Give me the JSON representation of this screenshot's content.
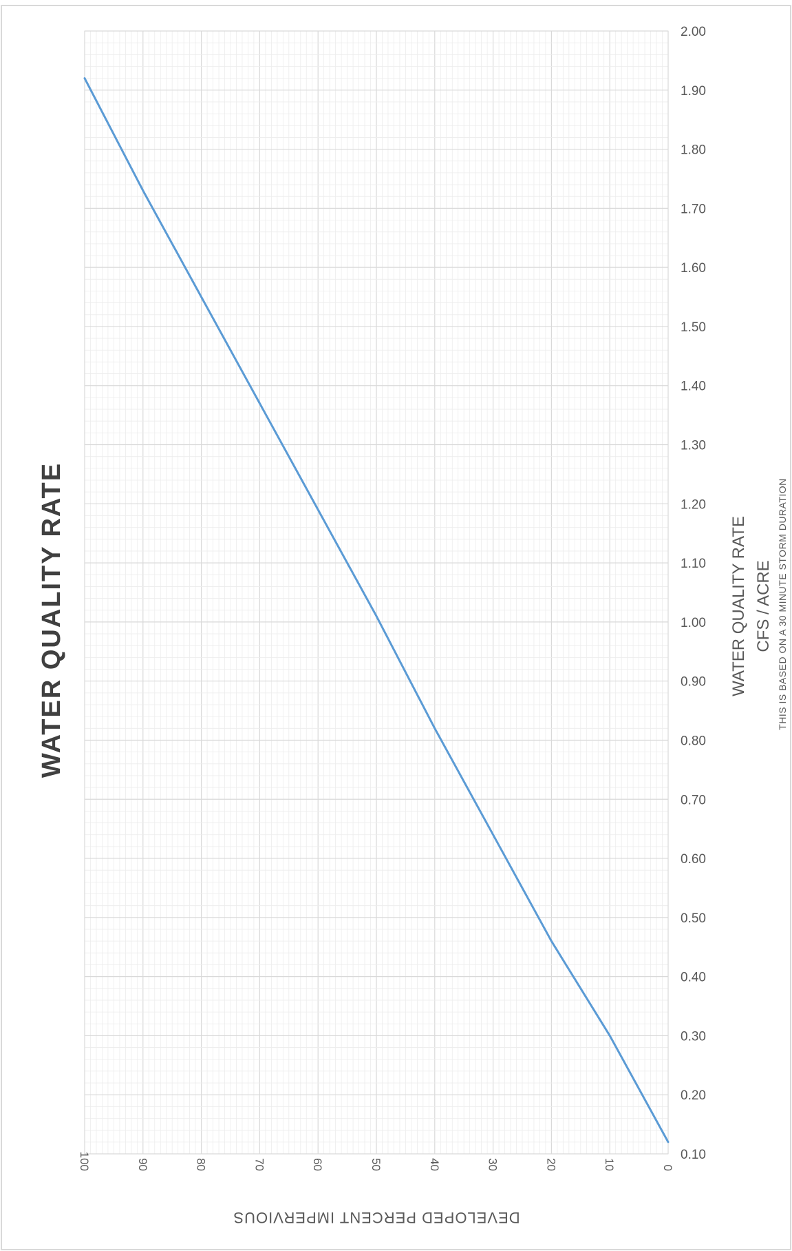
{
  "chart_data": {
    "type": "line",
    "title": "WATER QUALITY RATE",
    "xlabel": "DEVELOPED PERCENT IMPERVIOUS",
    "ylabel": [
      "WATER QUALITY RATE",
      "CFS / ACRE"
    ],
    "note": "THIS IS BASED ON A 30 MINUTE STORM DURATION",
    "xlim": [
      0,
      100
    ],
    "ylim": [
      0.1,
      2.0
    ],
    "x_ticks": [
      "100",
      "90",
      "80",
      "70",
      "60",
      "50",
      "40",
      "30",
      "20",
      "10",
      "0"
    ],
    "y_ticks": [
      "0.10",
      "0.20",
      "0.30",
      "0.40",
      "0.50",
      "0.60",
      "0.70",
      "0.80",
      "0.90",
      "1.00",
      "1.10",
      "1.20",
      "1.30",
      "1.40",
      "1.50",
      "1.60",
      "1.70",
      "1.80",
      "1.90",
      "2.00"
    ],
    "x_reversed": true,
    "grid": true,
    "line_color": "#5b9bd5",
    "series": [
      {
        "x": [
          0,
          10,
          20,
          30,
          40,
          50,
          60,
          70,
          80,
          90,
          100
        ],
        "values": [
          0.12,
          0.3,
          0.46,
          0.64,
          0.82,
          1.01,
          1.19,
          1.37,
          1.55,
          1.73,
          1.92
        ]
      }
    ]
  }
}
